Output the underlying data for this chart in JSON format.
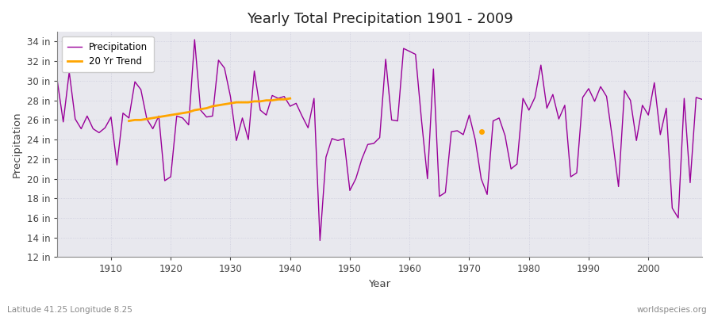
{
  "title": "Yearly Total Precipitation 1901 - 2009",
  "xlabel": "Year",
  "ylabel": "Precipitation",
  "lat_lon_label": "Latitude 41.25 Longitude 8.25",
  "watermark": "worldspecies.org",
  "line_color": "#990099",
  "trend_color": "#FFA500",
  "fig_bg_color": "#FFFFFF",
  "plot_bg_color": "#E8E8EE",
  "grid_color": "#CCCCDD",
  "ylim": [
    12,
    35
  ],
  "ytick_values": [
    12,
    14,
    16,
    18,
    20,
    22,
    24,
    26,
    28,
    30,
    32,
    34
  ],
  "xlim": [
    1901,
    2009
  ],
  "years": [
    1901,
    1902,
    1903,
    1904,
    1905,
    1906,
    1907,
    1908,
    1909,
    1910,
    1911,
    1912,
    1913,
    1914,
    1915,
    1916,
    1917,
    1918,
    1919,
    1920,
    1921,
    1922,
    1923,
    1924,
    1925,
    1926,
    1927,
    1928,
    1929,
    1930,
    1931,
    1932,
    1933,
    1934,
    1935,
    1936,
    1937,
    1938,
    1939,
    1940,
    1941,
    1942,
    1943,
    1944,
    1945,
    1946,
    1947,
    1948,
    1949,
    1950,
    1951,
    1952,
    1953,
    1954,
    1955,
    1956,
    1957,
    1958,
    1959,
    1960,
    1961,
    1962,
    1963,
    1964,
    1965,
    1966,
    1967,
    1968,
    1969,
    1970,
    1971,
    1972,
    1973,
    1974,
    1975,
    1976,
    1977,
    1978,
    1979,
    1980,
    1981,
    1982,
    1983,
    1984,
    1985,
    1986,
    1987,
    1988,
    1989,
    1990,
    1991,
    1992,
    1993,
    1994,
    1995,
    1996,
    1997,
    1998,
    1999,
    2000,
    2001,
    2002,
    2003,
    2004,
    2005,
    2006,
    2007,
    2008,
    2009
  ],
  "precip": [
    30.0,
    25.8,
    30.9,
    26.1,
    25.1,
    26.4,
    25.1,
    24.7,
    25.2,
    26.3,
    21.4,
    26.7,
    26.2,
    29.9,
    29.1,
    26.1,
    25.1,
    26.4,
    19.8,
    20.2,
    26.4,
    26.2,
    25.5,
    34.2,
    27.0,
    26.3,
    26.4,
    32.1,
    31.3,
    28.4,
    23.9,
    26.2,
    24.0,
    31.0,
    27.0,
    26.5,
    28.5,
    28.2,
    28.4,
    27.4,
    27.7,
    26.4,
    25.2,
    28.2,
    13.7,
    22.2,
    24.1,
    23.9,
    24.1,
    18.8,
    20.0,
    22.0,
    23.5,
    23.6,
    24.2,
    32.2,
    26.0,
    25.9,
    33.3,
    33.0,
    32.7,
    26.0,
    20.0,
    31.2,
    18.2,
    18.6,
    24.8,
    24.9,
    24.5,
    26.5,
    24.0,
    20.0,
    18.4,
    25.9,
    26.2,
    24.4,
    21.0,
    21.5,
    28.2,
    27.0,
    28.3,
    31.6,
    27.2,
    28.6,
    26.1,
    27.5,
    20.2,
    20.6,
    28.3,
    29.2,
    27.9,
    29.4,
    28.4,
    24.0,
    19.2,
    29.0,
    28.0,
    23.9,
    27.5,
    26.5,
    29.8,
    24.5,
    27.2,
    17.0,
    16.0,
    28.2,
    19.6,
    28.3,
    28.1
  ],
  "trend_years": [
    1913,
    1914,
    1915,
    1916,
    1917,
    1918,
    1919,
    1920,
    1921,
    1922,
    1923,
    1924,
    1925,
    1926,
    1927,
    1928,
    1929,
    1930,
    1931,
    1932,
    1933,
    1934,
    1935,
    1936,
    1937,
    1938,
    1939,
    1940
  ],
  "trend_values": [
    25.9,
    26.0,
    26.0,
    26.1,
    26.2,
    26.3,
    26.4,
    26.5,
    26.6,
    26.7,
    26.8,
    27.0,
    27.1,
    27.2,
    27.4,
    27.5,
    27.6,
    27.7,
    27.8,
    27.8,
    27.8,
    27.9,
    27.9,
    28.0,
    28.0,
    28.1,
    28.1,
    28.2
  ],
  "trend_dot_year": 1972,
  "trend_dot_value": 24.8
}
